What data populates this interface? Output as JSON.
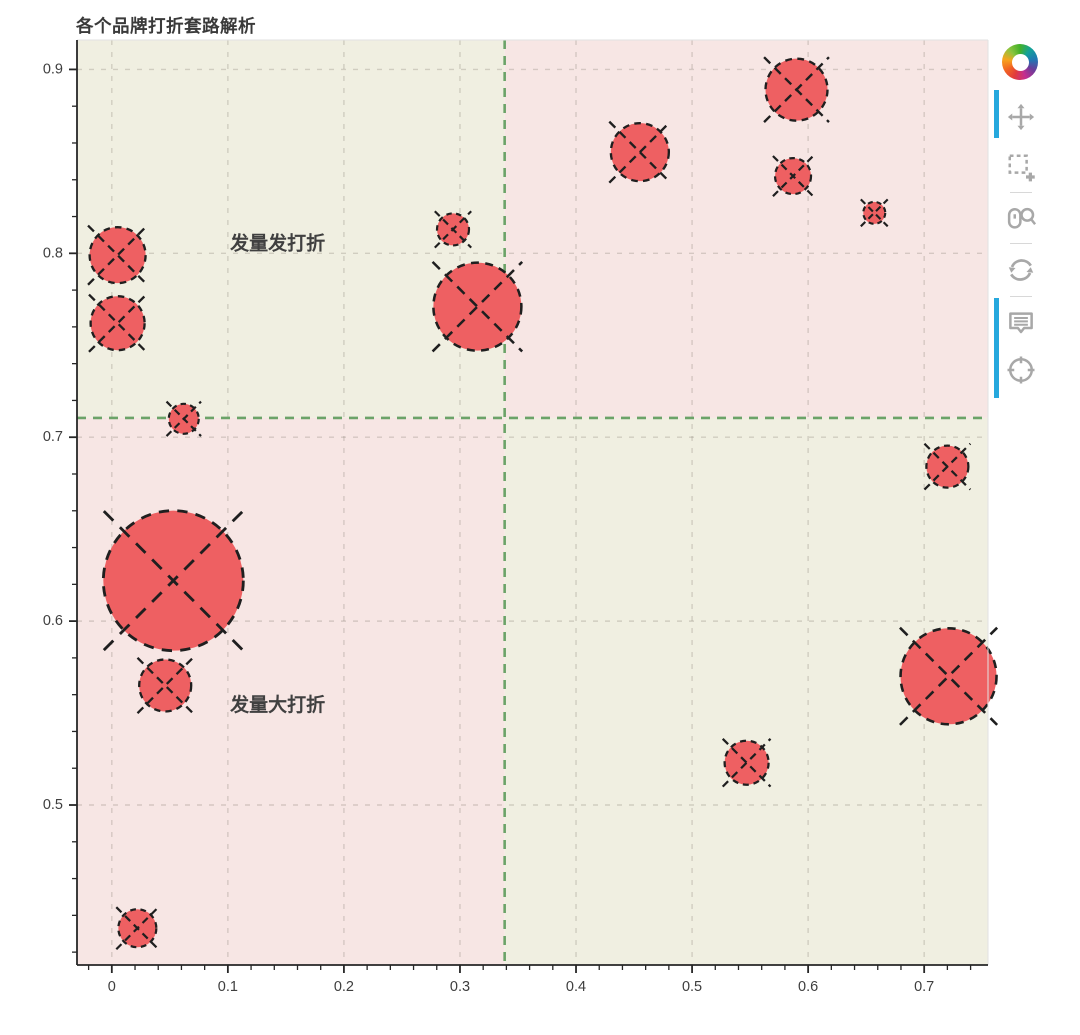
{
  "chart_data": {
    "type": "scatter",
    "title": "各个品牌打折套路解析",
    "xlabel": "",
    "ylabel": "",
    "x_range": [
      -0.03,
      0.755
    ],
    "y_range": [
      0.413,
      0.916
    ],
    "x_ticks": [
      {
        "v": 0.0,
        "label": "0"
      },
      {
        "v": 0.1,
        "label": "0.1"
      },
      {
        "v": 0.2,
        "label": "0.2"
      },
      {
        "v": 0.3,
        "label": "0.3"
      },
      {
        "v": 0.4,
        "label": "0.4"
      },
      {
        "v": 0.5,
        "label": "0.5"
      },
      {
        "v": 0.6,
        "label": "0.6"
      },
      {
        "v": 0.7,
        "label": "0.7"
      }
    ],
    "y_ticks": [
      {
        "v": 0.5,
        "label": "0.5"
      },
      {
        "v": 0.6,
        "label": "0.6"
      },
      {
        "v": 0.7,
        "label": "0.7"
      },
      {
        "v": 0.8,
        "label": "0.8"
      },
      {
        "v": 0.9,
        "label": "0.9"
      }
    ],
    "minor_tick_step": 0.02,
    "grid": "dashed",
    "legend": "none",
    "dividers": {
      "x": 0.3385,
      "y": 0.7105
    },
    "quadrant_colors": {
      "top_left": "#f0efe1",
      "top_right": "#f7e6e4",
      "bottom_left": "#f7e6e4",
      "bottom_right": "#f0efe1"
    },
    "annotations": [
      {
        "text": "发量发打折",
        "x": 0.102,
        "y": 0.805
      },
      {
        "text": "发量大打折",
        "x": 0.102,
        "y": 0.554
      }
    ],
    "points": [
      {
        "x": 0.005,
        "y": 0.799,
        "r": 28
      },
      {
        "x": 0.005,
        "y": 0.762,
        "r": 27
      },
      {
        "x": 0.062,
        "y": 0.71,
        "r": 15
      },
      {
        "x": 0.053,
        "y": 0.622,
        "r": 70
      },
      {
        "x": 0.046,
        "y": 0.565,
        "r": 26
      },
      {
        "x": 0.022,
        "y": 0.433,
        "r": 19
      },
      {
        "x": 0.294,
        "y": 0.813,
        "r": 16
      },
      {
        "x": 0.315,
        "y": 0.771,
        "r": 44
      },
      {
        "x": 0.455,
        "y": 0.855,
        "r": 29
      },
      {
        "x": 0.59,
        "y": 0.889,
        "r": 31
      },
      {
        "x": 0.587,
        "y": 0.842,
        "r": 18
      },
      {
        "x": 0.657,
        "y": 0.822,
        "r": 11
      },
      {
        "x": 0.72,
        "y": 0.684,
        "r": 21
      },
      {
        "x": 0.721,
        "y": 0.57,
        "r": 48
      },
      {
        "x": 0.547,
        "y": 0.523,
        "r": 22
      }
    ],
    "colors": {
      "marker_fill": "#ee6062",
      "marker_stroke": "#1f1f1f",
      "divider_green": "#6ba368",
      "grid_line": "rgba(125,120,108,0.28)",
      "axis": "#262626",
      "tick_label": "#3e3e3e",
      "annotation": "#404040"
    }
  },
  "toolbar": {
    "logo": "bokeh-logo",
    "active_color": "#26a8dd",
    "icon_color": "#a8a8a8",
    "tools": [
      {
        "name": "pan",
        "active": true
      },
      {
        "name": "box-zoom",
        "active": false
      },
      {
        "name": "wheel-zoom",
        "active": false
      },
      {
        "name": "reset",
        "active": false
      },
      {
        "name": "hover",
        "active": true
      },
      {
        "name": "crosshair",
        "active": true
      }
    ]
  }
}
